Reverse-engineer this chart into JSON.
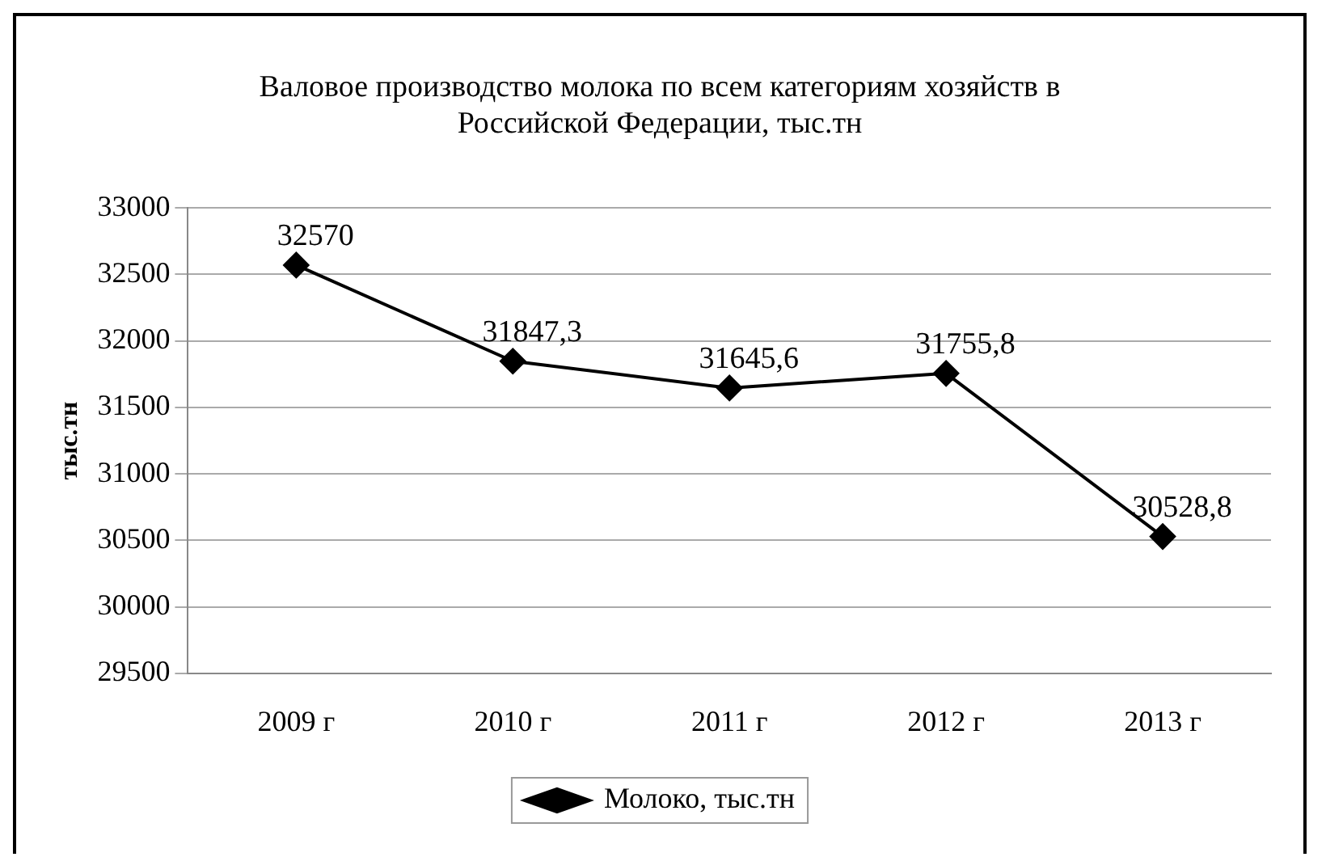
{
  "chart_data": {
    "type": "line",
    "title": [
      "Валовое производство молока по всем категориям хозяйств в",
      "Российской Федерации, тыс.тн"
    ],
    "ylabel": "тыс.тн",
    "categories": [
      "2009 г",
      "2010 г",
      "2011 г",
      "2012 г",
      "2013 г"
    ],
    "series": [
      {
        "name": "Молоко, тыс.тн",
        "color": "#000000",
        "values": [
          32570,
          31847.3,
          31645.6,
          31755.8,
          30528.8
        ],
        "value_labels": [
          "32570",
          "31847,3",
          "31645,6",
          "31755,8",
          "30528,8"
        ]
      }
    ],
    "ylim": [
      29500,
      33000
    ],
    "yticks": [
      29500,
      30000,
      30500,
      31000,
      31500,
      32000,
      32500,
      33000
    ],
    "grid": "y",
    "legend": "bottom",
    "marker": "diamond",
    "line_style": "solid"
  }
}
